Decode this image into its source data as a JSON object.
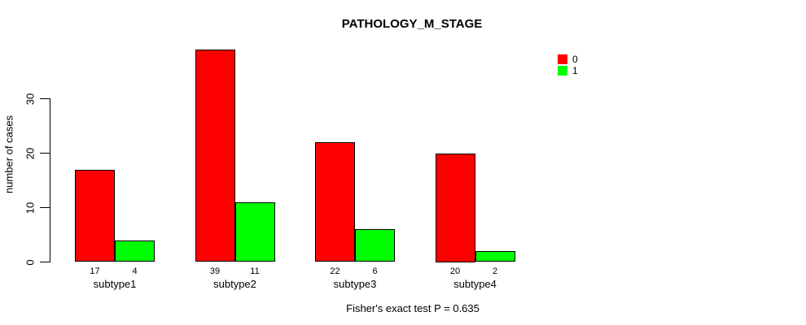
{
  "chart_data": {
    "type": "bar",
    "title": "PATHOLOGY_M_STAGE",
    "ylabel": "number of cases",
    "xlabel": "",
    "categories": [
      "subtype1",
      "subtype2",
      "subtype3",
      "subtype4"
    ],
    "series": [
      {
        "name": "0",
        "color": "#FF0000",
        "values": [
          17,
          39,
          22,
          20
        ]
      },
      {
        "name": "1",
        "color": "#00FF00",
        "values": [
          4,
          11,
          6,
          2
        ]
      }
    ],
    "bar_value_labels_shown": true,
    "yticks": [
      0,
      10,
      20,
      30
    ],
    "ylim": [
      0,
      40
    ],
    "grid": false,
    "legend_position": "top-right",
    "footer": "Fisher's exact test P = 0.635"
  },
  "colors": {
    "series0": "#FF0000",
    "series1": "#00FF00",
    "axis": "#000000",
    "background": "#FFFFFF"
  }
}
